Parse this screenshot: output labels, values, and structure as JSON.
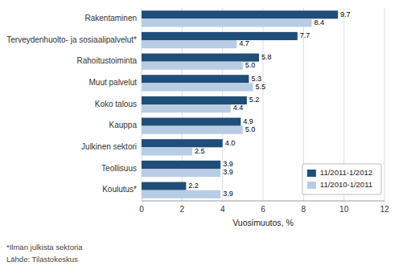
{
  "chart_data": {
    "type": "bar",
    "orientation": "horizontal",
    "categories": [
      "Rakentaminen",
      "Terveydenhuolto- ja sosiaalipalvelut*",
      "Rahoitustoiminta",
      "Muut palvelut",
      "Koko talous",
      "Kauppa",
      "Julkinen sektori",
      "Teollisuus",
      "Koulutus*"
    ],
    "series": [
      {
        "name": "11/2011-1/2012",
        "color": "#1F4E79",
        "values": [
          9.7,
          7.7,
          5.8,
          5.3,
          5.2,
          4.9,
          4.0,
          3.9,
          2.2
        ],
        "value_labels": [
          "9.7",
          "7.7",
          "5.8",
          "5.3",
          "5.2",
          "4.9",
          "4.0",
          "3.9",
          "2.2"
        ]
      },
      {
        "name": "11/2010-1/2011",
        "color": "#B8CCE4",
        "values": [
          8.4,
          4.7,
          5.0,
          5.5,
          4.4,
          5.0,
          2.5,
          3.9,
          3.9
        ],
        "value_labels": [
          "8.4",
          "4.7",
          "5.0",
          "5.5",
          "4.4",
          "5.0",
          "2.5",
          "3.9",
          "3.9"
        ]
      }
    ],
    "xlabel": "Vuosimuutos, %",
    "xlim": [
      0,
      12
    ],
    "xticks": [
      0,
      2,
      4,
      6,
      8,
      10,
      12
    ],
    "annotations": [
      "*Ilman julkista sektoria",
      "Lähde: Tilastokeskus"
    ],
    "grid": true,
    "data_labels": true,
    "legend": "lower right"
  }
}
